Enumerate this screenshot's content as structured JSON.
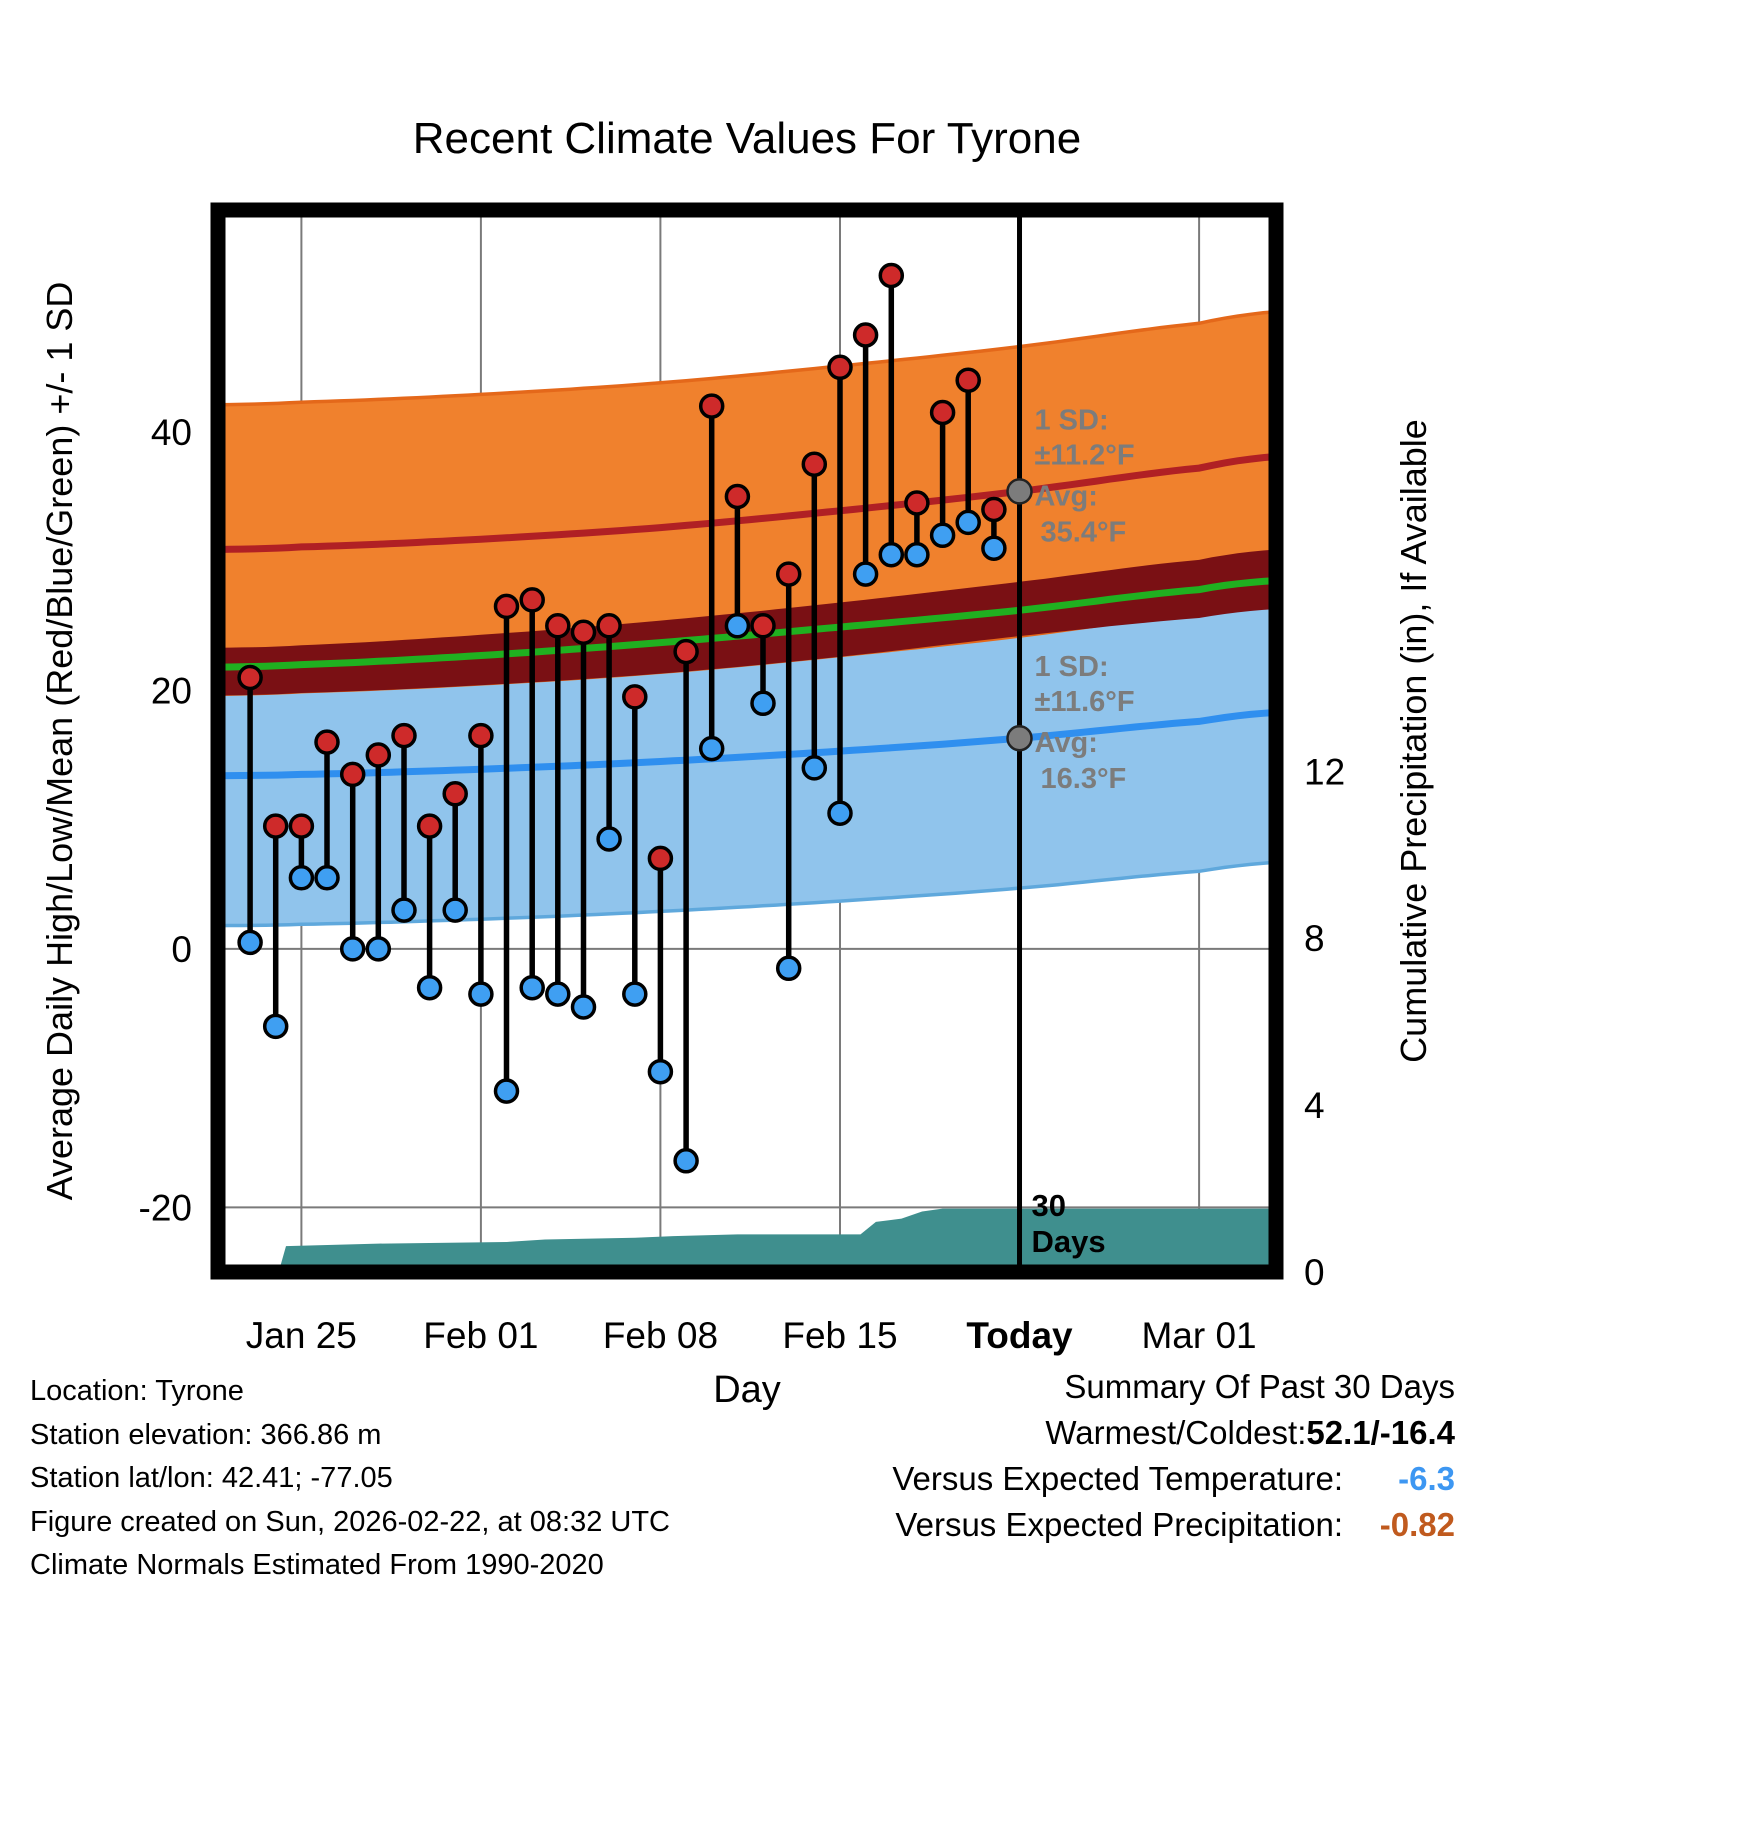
{
  "chart_data": {
    "type": "line",
    "title": "Recent Climate Values For Tyrone",
    "xlabel": "Day",
    "ylabel_left": "Average Daily High/Low/Mean (Red/Blue/Green) +/- 1 SD",
    "ylabel_right": "Cumulative Precipitation (in), If Available",
    "x_domain_days": [
      -3.25,
      38
    ],
    "y_temp_domain": [
      -25,
      57.17
    ],
    "y_precip_domain": [
      0,
      25.45
    ],
    "today_d": 28,
    "x_ticks": [
      {
        "label": "Jan 25",
        "d": 0,
        "bold": false
      },
      {
        "label": "Feb 01",
        "d": 7,
        "bold": false
      },
      {
        "label": "Feb 08",
        "d": 14,
        "bold": false
      },
      {
        "label": "Feb 15",
        "d": 21,
        "bold": false
      },
      {
        "label": "Today",
        "d": 28,
        "bold": true
      },
      {
        "label": "Mar 01",
        "d": 35,
        "bold": false
      }
    ],
    "y_ticks_temp": [
      {
        "label": "-20",
        "value": -20
      },
      {
        "label": "0",
        "value": 0
      },
      {
        "label": "20",
        "value": 20
      },
      {
        "label": "40",
        "value": 40
      }
    ],
    "y_ticks_precip": [
      {
        "label": "0",
        "value": 0
      },
      {
        "label": "4",
        "value": 4
      },
      {
        "label": "8",
        "value": 8
      },
      {
        "label": "12",
        "value": 12
      }
    ],
    "bands": {
      "high": {
        "sd": 11.2,
        "avg_points": [
          [
            -3.25,
            30.9
          ],
          [
            0,
            31.1
          ],
          [
            7,
            31.7
          ],
          [
            14,
            32.6
          ],
          [
            21,
            33.9
          ],
          [
            28,
            35.4
          ],
          [
            35,
            37.2
          ],
          [
            38,
            38.1
          ]
        ]
      },
      "low": {
        "sd": 11.6,
        "avg_points": [
          [
            -3.25,
            13.4
          ],
          [
            0,
            13.5
          ],
          [
            7,
            13.9
          ],
          [
            14,
            14.5
          ],
          [
            21,
            15.3
          ],
          [
            28,
            16.3
          ],
          [
            35,
            17.6
          ],
          [
            38,
            18.3
          ]
        ]
      },
      "mean": {
        "points": [
          [
            -3.25,
            21.8
          ],
          [
            0,
            22.0
          ],
          [
            7,
            22.7
          ],
          [
            14,
            23.7
          ],
          [
            21,
            24.9
          ],
          [
            28,
            26.2
          ],
          [
            35,
            27.8
          ],
          [
            38,
            28.5
          ]
        ],
        "top_points": [
          [
            -3.25,
            23.3
          ],
          [
            0,
            23.5
          ],
          [
            7,
            24.3
          ],
          [
            14,
            25.4
          ],
          [
            21,
            26.8
          ],
          [
            28,
            28.4
          ],
          [
            35,
            30.1
          ],
          [
            38,
            30.9
          ]
        ],
        "bottom_points": [
          [
            -3.25,
            19.6
          ],
          [
            0,
            19.8
          ],
          [
            7,
            20.4
          ],
          [
            14,
            21.3
          ],
          [
            21,
            22.6
          ],
          [
            28,
            24.2
          ],
          [
            35,
            25.6
          ],
          [
            38,
            26.3
          ]
        ]
      }
    },
    "daily": [
      {
        "date": "Jan 23",
        "d": -2,
        "high": 21.0,
        "low": 0.5
      },
      {
        "date": "Jan 24",
        "d": -1,
        "high": 9.5,
        "low": -6.0
      },
      {
        "date": "Jan 25",
        "d": 0,
        "high": 9.5,
        "low": 5.5
      },
      {
        "date": "Jan 26",
        "d": 1,
        "high": 16.0,
        "low": 5.5
      },
      {
        "date": "Jan 27",
        "d": 2,
        "high": 13.5,
        "low": 0.0
      },
      {
        "date": "Jan 28",
        "d": 3,
        "high": 15.0,
        "low": 0.0
      },
      {
        "date": "Jan 29",
        "d": 4,
        "high": 16.5,
        "low": 3.0
      },
      {
        "date": "Jan 30",
        "d": 5,
        "high": 9.5,
        "low": -3.0
      },
      {
        "date": "Jan 31",
        "d": 6,
        "high": 12.0,
        "low": 3.0
      },
      {
        "date": "Feb 01",
        "d": 7,
        "high": 16.5,
        "low": -3.5
      },
      {
        "date": "Feb 02",
        "d": 8,
        "high": 26.5,
        "low": -11.0
      },
      {
        "date": "Feb 03",
        "d": 9,
        "high": 27.0,
        "low": -3.0
      },
      {
        "date": "Feb 04",
        "d": 10,
        "high": 25.0,
        "low": -3.5
      },
      {
        "date": "Feb 05",
        "d": 11,
        "high": 24.5,
        "low": -4.5
      },
      {
        "date": "Feb 06",
        "d": 12,
        "high": 25.0,
        "low": 8.5
      },
      {
        "date": "Feb 07",
        "d": 13,
        "high": 19.5,
        "low": -3.5
      },
      {
        "date": "Feb 08",
        "d": 14,
        "high": 7.0,
        "low": -9.5
      },
      {
        "date": "Feb 09",
        "d": 15,
        "high": 23.0,
        "low": -16.4
      },
      {
        "date": "Feb 10",
        "d": 16,
        "high": 42.0,
        "low": 15.5
      },
      {
        "date": "Feb 11",
        "d": 17,
        "high": 35.0,
        "low": 25.0
      },
      {
        "date": "Feb 12",
        "d": 18,
        "high": 25.0,
        "low": 19.0
      },
      {
        "date": "Feb 13",
        "d": 19,
        "high": 29.0,
        "low": -1.5
      },
      {
        "date": "Feb 14",
        "d": 20,
        "high": 37.5,
        "low": 14.0
      },
      {
        "date": "Feb 15",
        "d": 21,
        "high": 45.0,
        "low": 10.5
      },
      {
        "date": "Feb 16",
        "d": 22,
        "high": 47.5,
        "low": 29.0
      },
      {
        "date": "Feb 17",
        "d": 23,
        "high": 52.1,
        "low": 30.5
      },
      {
        "date": "Feb 18",
        "d": 24,
        "high": 34.5,
        "low": 30.5
      },
      {
        "date": "Feb 19",
        "d": 25,
        "high": 41.5,
        "low": 32.0
      },
      {
        "date": "Feb 20",
        "d": 26,
        "high": 44.0,
        "low": 33.0
      },
      {
        "date": "Feb 21",
        "d": 27,
        "high": 34.0,
        "low": 31.0
      }
    ],
    "precip_cumulative": [
      [
        -3.25,
        0.06
      ],
      [
        -0.85,
        0.08
      ],
      [
        -0.6,
        0.62
      ],
      [
        3,
        0.68
      ],
      [
        8,
        0.72
      ],
      [
        9.5,
        0.78
      ],
      [
        13,
        0.82
      ],
      [
        14.5,
        0.86
      ],
      [
        17,
        0.9
      ],
      [
        21.8,
        0.9
      ],
      [
        22.4,
        1.2
      ],
      [
        23.4,
        1.28
      ],
      [
        24.2,
        1.45
      ],
      [
        25,
        1.52
      ],
      [
        38,
        1.52
      ]
    ],
    "annotations": {
      "color": "#7C7C7C",
      "high": {
        "value": 35.4,
        "lines": [
          "1 SD:",
          "±11.2°F",
          "Avg:",
          "35.4°F"
        ]
      },
      "low": {
        "value": 16.3,
        "lines": [
          "1 SD:",
          "±11.6°F",
          "Avg:",
          "16.3°F"
        ]
      },
      "window": [
        "30",
        "Days"
      ]
    },
    "colors": {
      "grid": "#7A7A7A",
      "high_band": "#F0812D",
      "high_band_edge": "#E4681A",
      "low_band": "#90C4EC",
      "low_band_edge": "#5FA8DC",
      "mean_band": "#7A1014",
      "avg_high_line": "#B02024",
      "avg_low_line": "#2F8FEF",
      "mean_line": "#20B020",
      "dot_high": "#CE2A2A",
      "dot_low": "#3F9FF2",
      "precip": "#3F8F8E",
      "today_line": "#000000"
    }
  },
  "station_info": {
    "location": "Location: Tyrone",
    "elevation": "Station elevation: 366.86 m",
    "latlon": "Station lat/lon: 42.41; -77.05",
    "created": "Figure created on Sun, 2026-02-22, at 08:32 UTC",
    "normals": "Climate Normals Estimated From 1990-2020"
  },
  "summary": {
    "title": "Summary Of Past 30 Days",
    "rows": [
      {
        "label": "Warmest/Coldest:",
        "value": "52.1/-16.4",
        "color": "#000000"
      },
      {
        "label": "Versus Expected Temperature:",
        "value": "-6.3",
        "color": "#3D97F2"
      },
      {
        "label": "Versus Expected Precipitation:",
        "value": "-0.82",
        "color": "#C05A1E"
      }
    ]
  }
}
